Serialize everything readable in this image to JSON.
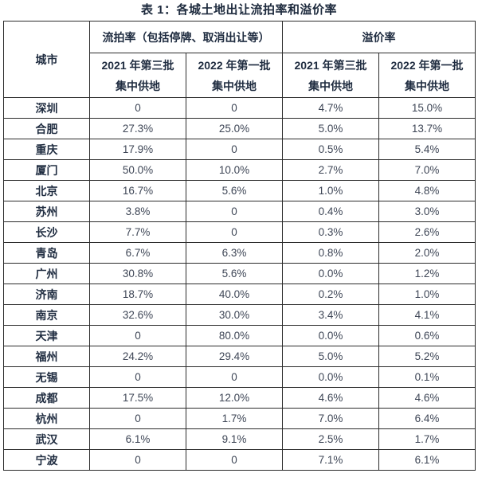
{
  "title": "表 1：各城土地出让流拍率和溢价率",
  "table": {
    "city_header": "城市",
    "group_headers": [
      "流拍率（包括停牌、取消出让等）",
      "溢价率"
    ],
    "sub_headers": [
      {
        "line1": "2021 年第三批",
        "line2": "集中供地"
      },
      {
        "line1": "2022 年第一批",
        "line2": "集中供地"
      },
      {
        "line1": "2021 年第三批",
        "line2": "集中供地"
      },
      {
        "line1": "2022 年第一批",
        "line2": "集中供地"
      }
    ],
    "rows": [
      {
        "city": "深圳",
        "values": [
          "0",
          "0",
          "4.7%",
          "15.0%"
        ]
      },
      {
        "city": "合肥",
        "values": [
          "27.3%",
          "25.0%",
          "5.0%",
          "13.7%"
        ]
      },
      {
        "city": "重庆",
        "values": [
          "17.9%",
          "0",
          "0.5%",
          "5.4%"
        ]
      },
      {
        "city": "厦门",
        "values": [
          "50.0%",
          "10.0%",
          "2.7%",
          "7.0%"
        ]
      },
      {
        "city": "北京",
        "values": [
          "16.7%",
          "5.6%",
          "1.0%",
          "4.8%"
        ]
      },
      {
        "city": "苏州",
        "values": [
          "3.8%",
          "0",
          "0.4%",
          "3.0%"
        ]
      },
      {
        "city": "长沙",
        "values": [
          "7.7%",
          "0",
          "0.3%",
          "2.6%"
        ]
      },
      {
        "city": "青岛",
        "values": [
          "6.7%",
          "6.3%",
          "0.8%",
          "2.0%"
        ]
      },
      {
        "city": "广州",
        "values": [
          "30.8%",
          "5.6%",
          "0.0%",
          "1.2%"
        ]
      },
      {
        "city": "济南",
        "values": [
          "18.7%",
          "40.0%",
          "0.2%",
          "1.0%"
        ]
      },
      {
        "city": "南京",
        "values": [
          "32.6%",
          "30.0%",
          "3.4%",
          "4.1%"
        ]
      },
      {
        "city": "天津",
        "values": [
          "0",
          "80.0%",
          "0.0%",
          "0.6%"
        ]
      },
      {
        "city": "福州",
        "values": [
          "24.2%",
          "29.4%",
          "5.0%",
          "5.2%"
        ]
      },
      {
        "city": "无锡",
        "values": [
          "0",
          "0",
          "0.0%",
          "0.1%"
        ]
      },
      {
        "city": "成都",
        "values": [
          "17.5%",
          "12.0%",
          "4.6%",
          "4.6%"
        ]
      },
      {
        "city": "杭州",
        "values": [
          "0",
          "1.7%",
          "7.0%",
          "6.4%"
        ]
      },
      {
        "city": "武汉",
        "values": [
          "6.1%",
          "9.1%",
          "2.5%",
          "1.7%"
        ]
      },
      {
        "city": "宁波",
        "values": [
          "0",
          "0",
          "7.1%",
          "6.1%"
        ]
      }
    ],
    "colors": {
      "header_text": "#1f2c40",
      "value_text": "#3e4656",
      "border": "#2c2c2c",
      "background": "#ffffff"
    }
  }
}
